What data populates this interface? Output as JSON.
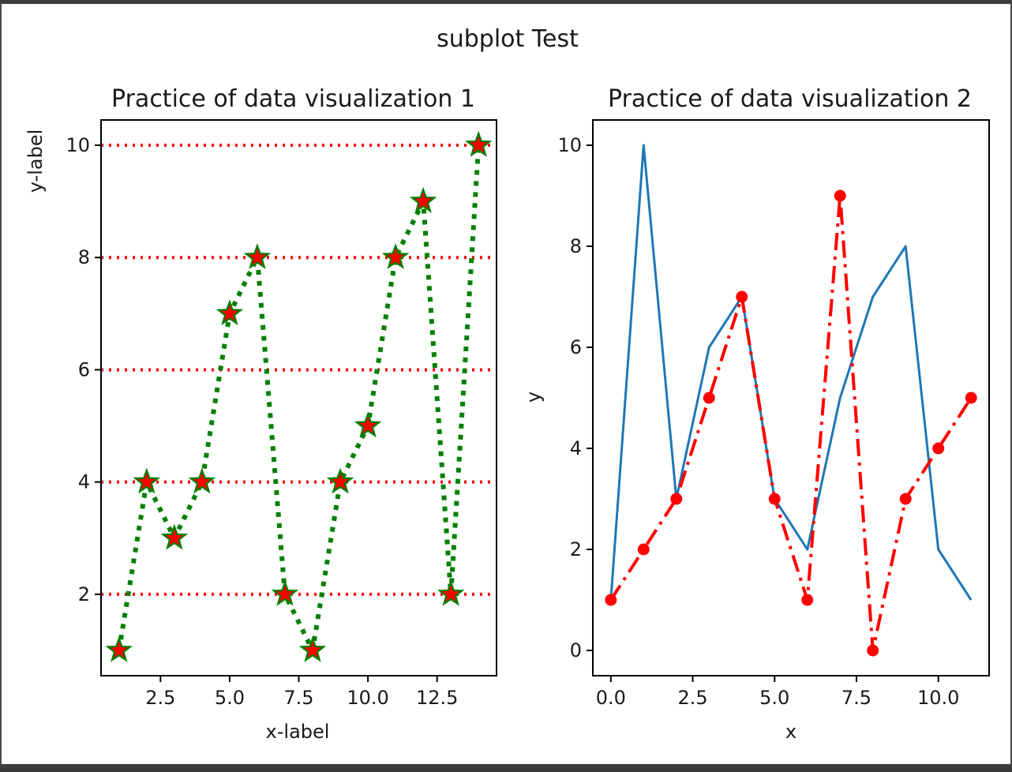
{
  "figure": {
    "suptitle": "subplot Test"
  },
  "chart_data": [
    {
      "type": "line",
      "title": "Practice of data visualization 1",
      "xlabel": "x-label",
      "ylabel": "y-label",
      "xlim": [
        0.35,
        14.65
      ],
      "ylim": [
        0.55,
        10.45
      ],
      "xticks": [
        2.5,
        5.0,
        7.5,
        10.0,
        12.5
      ],
      "xtick_labels": [
        "2.5",
        "5.0",
        "7.5",
        "10.0",
        "12.5"
      ],
      "yticks": [
        2,
        4,
        6,
        8,
        10
      ],
      "ytick_labels": [
        "2",
        "4",
        "6",
        "8",
        "10"
      ],
      "grid": {
        "axis": "y",
        "style": "dotted",
        "color": "#ff0000"
      },
      "series": [
        {
          "x": [
            1,
            2,
            3,
            4,
            5,
            6,
            7,
            8,
            9,
            10,
            11,
            12,
            13,
            14
          ],
          "y": [
            1,
            4,
            3,
            4,
            7,
            8,
            2,
            1,
            4,
            5,
            8,
            9,
            2,
            10
          ],
          "line_color": "#008000",
          "line_style": "dotted",
          "marker": "star",
          "marker_face": "#ff0000",
          "marker_edge": "#008000"
        }
      ]
    },
    {
      "type": "line",
      "title": "Practice of data visualization 2",
      "xlabel": "x",
      "ylabel": "y",
      "xlim": [
        -0.55,
        11.55
      ],
      "ylim": [
        -0.5,
        10.5
      ],
      "xticks": [
        0.0,
        2.5,
        5.0,
        7.5,
        10.0
      ],
      "xtick_labels": [
        "0.0",
        "2.5",
        "5.0",
        "7.5",
        "10.0"
      ],
      "yticks": [
        0,
        2,
        4,
        6,
        8,
        10
      ],
      "ytick_labels": [
        "0",
        "2",
        "4",
        "6",
        "8",
        "10"
      ],
      "grid": null,
      "series": [
        {
          "x": [
            0,
            1,
            2,
            3,
            4,
            5,
            6,
            7,
            8,
            9,
            10,
            11
          ],
          "y": [
            1,
            10,
            3,
            6,
            7,
            3,
            2,
            5,
            7,
            8,
            2,
            1
          ],
          "line_color": "#1f77b4",
          "line_style": "solid",
          "marker": "none"
        },
        {
          "x": [
            0,
            1,
            2,
            3,
            4,
            5,
            6,
            7,
            8,
            9,
            10,
            11
          ],
          "y": [
            1,
            2,
            3,
            5,
            7,
            3,
            1,
            9,
            0,
            3,
            4,
            5
          ],
          "line_color": "#ff0000",
          "line_style": "dashdot",
          "marker": "circle",
          "marker_face": "#ff0000",
          "marker_edge": "#ff0000"
        }
      ]
    }
  ]
}
